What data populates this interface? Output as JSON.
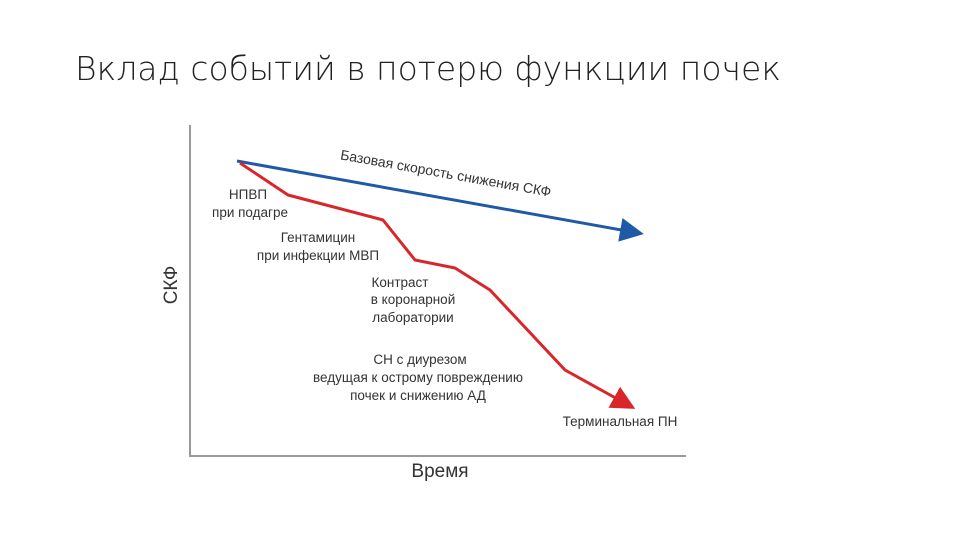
{
  "title": "Вклад событий в потерю функции почек",
  "diagram": {
    "y_axis_label": "СКФ",
    "x_axis_label": "Время",
    "baseline_label": "Базовая скорость снижения СКФ",
    "events": [
      {
        "lines": [
          "НПВП",
          "при подагре"
        ]
      },
      {
        "lines": [
          "Гентамицин",
          "при инфекции МВП"
        ]
      },
      {
        "lines": [
          "Контраст",
          "в коронарной",
          "лаборатории"
        ]
      },
      {
        "lines": [
          "СН с диурезом",
          "ведущая к острому повреждению",
          "почек и снижению АД"
        ]
      }
    ],
    "end_label": "Терминальная ПН"
  }
}
